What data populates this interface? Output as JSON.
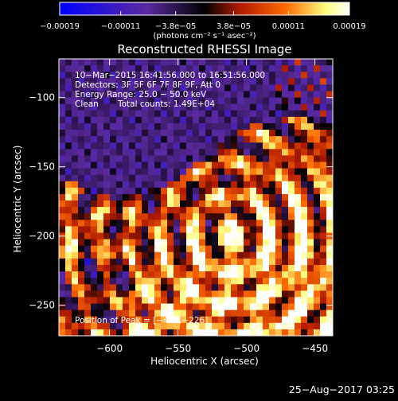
{
  "chart_data": {
    "type": "heatmap",
    "title": "Reconstructed RHESSI Image",
    "xlabel": "Heliocentric X (arcsec)",
    "ylabel": "Heliocentric Y (arcsec)",
    "xlim": [
      -637,
      -437
    ],
    "ylim": [
      -272,
      -72
    ],
    "x_ticks": [
      -600,
      -550,
      -500,
      -450
    ],
    "y_ticks": [
      -100,
      -150,
      -200,
      -250
    ],
    "x_tick_labels": [
      "−600",
      "−550",
      "−500",
      "−450"
    ],
    "y_tick_labels": [
      "−100",
      "−150",
      "−200",
      "−250"
    ],
    "colorbar": {
      "range": [
        -0.00019,
        0.00019
      ],
      "ticks": [
        -0.00019,
        -0.00011,
        -3.8e-05,
        3.8e-05,
        0.00011,
        0.00019
      ],
      "tick_labels": [
        "−0.00019",
        "−0.00011",
        "−3.8e−05",
        "3.8e−05",
        "0.00011",
        "0.00019"
      ],
      "unit_label": "(photons cm⁻² s⁻¹ asec⁻²)",
      "colors": [
        "#0000ff",
        "#5a2aa0",
        "#000000",
        "#b01a00",
        "#ff6a00",
        "#ffff80",
        "#ffffff"
      ]
    },
    "annotations": {
      "time_range": "10−Mar−2015 16:41:56.000 to 16:51:56.000",
      "detectors": "Detectors: 3F 5F 6F 7F 8F 9F, Att 0",
      "energy_range": "Energy Range: 25.0 − 50.0 keV",
      "algorithm": "Clean",
      "total_counts": "Total counts: 1.49E+04",
      "peak_position": "Position of Peak = [−465,−226]"
    },
    "grid": false,
    "legend": "colorbar-top"
  },
  "timestamp": "25−Aug−2017 03:25"
}
